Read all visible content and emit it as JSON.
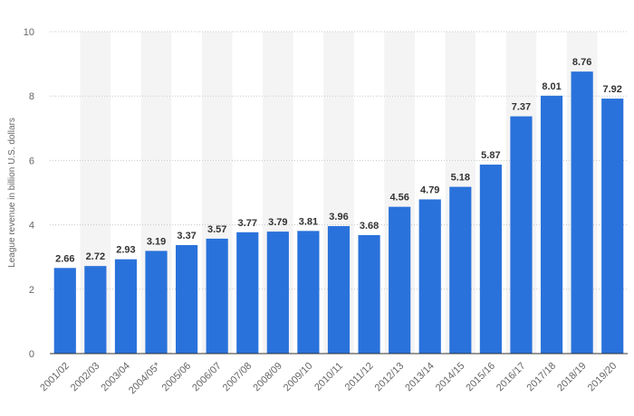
{
  "chart_data": {
    "type": "bar",
    "title": "",
    "xlabel": "",
    "ylabel": "League revenue in billion U.S. dollars",
    "ylim": [
      0,
      10
    ],
    "yticks": [
      0,
      2,
      4,
      6,
      8,
      10
    ],
    "grid": true,
    "bar_color": "#2a72db",
    "band_color": "#f4f4f4",
    "categories": [
      "2001/02",
      "2002/03",
      "2003/04",
      "2004/05*",
      "2005/06",
      "2006/07",
      "2007/08",
      "2008/09",
      "2009/10",
      "2010/11",
      "2011/12",
      "2012/13",
      "2013/14",
      "2014/15",
      "2015/16",
      "2016/17",
      "2017/18",
      "2018/19",
      "2019/20"
    ],
    "values": [
      2.66,
      2.72,
      2.93,
      3.19,
      3.37,
      3.57,
      3.77,
      3.79,
      3.81,
      3.96,
      3.68,
      4.56,
      4.79,
      5.18,
      5.87,
      7.37,
      8.01,
      8.76,
      7.92
    ],
    "value_labels": [
      "2.66",
      "2.72",
      "2.93",
      "3.19",
      "3.37",
      "3.57",
      "3.77",
      "3.79",
      "3.81",
      "3.96",
      "3.68",
      "4.56",
      "4.79",
      "5.18",
      "5.87",
      "7.37",
      "8.01",
      "8.76",
      "7.92"
    ]
  }
}
